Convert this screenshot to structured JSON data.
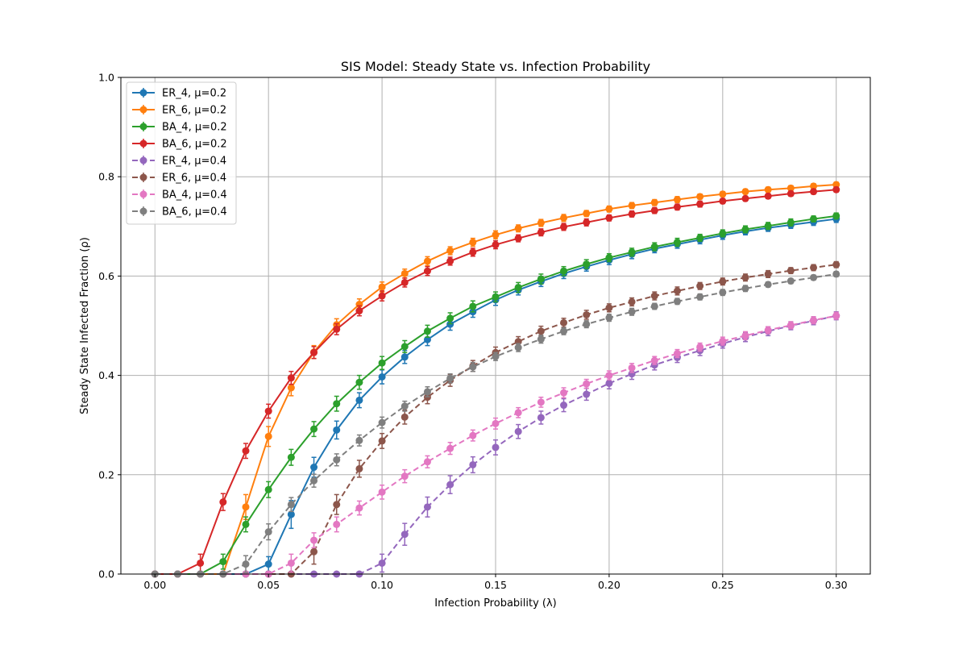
{
  "chart_data": {
    "type": "line",
    "title": "SIS Model: Steady State vs. Infection Probability",
    "xlabel": "Infection Probability (λ)",
    "ylabel": "Steady State Infected Fraction (ρ)",
    "xlim": [
      -0.015,
      0.315
    ],
    "ylim": [
      0,
      1
    ],
    "xticks": [
      0.0,
      0.05,
      0.1,
      0.15,
      0.2,
      0.25,
      0.3
    ],
    "xtick_labels": [
      "0.00",
      "0.05",
      "0.10",
      "0.15",
      "0.20",
      "0.25",
      "0.30"
    ],
    "yticks": [
      0.0,
      0.2,
      0.4,
      0.6,
      0.8,
      1.0
    ],
    "ytick_labels": [
      "0.0",
      "0.2",
      "0.4",
      "0.6",
      "0.8",
      "1.0"
    ],
    "grid": true,
    "legend_position": "top-left",
    "x": [
      0.0,
      0.01,
      0.02,
      0.03,
      0.04,
      0.05,
      0.06,
      0.07,
      0.08,
      0.09,
      0.1,
      0.11,
      0.12,
      0.13,
      0.14,
      0.15,
      0.16,
      0.17,
      0.18,
      0.19,
      0.2,
      0.21,
      0.22,
      0.23,
      0.24,
      0.25,
      0.26,
      0.27,
      0.28,
      0.29,
      0.3
    ],
    "series": [
      {
        "name": "ER_4, μ=0.2",
        "color": "#1f77b4",
        "dashed": false,
        "values": [
          0,
          0,
          0,
          0,
          0,
          0.02,
          0.12,
          0.215,
          0.29,
          0.35,
          0.397,
          0.437,
          0.472,
          0.503,
          0.528,
          0.552,
          0.572,
          0.589,
          0.605,
          0.619,
          0.632,
          0.644,
          0.655,
          0.664,
          0.673,
          0.682,
          0.69,
          0.697,
          0.703,
          0.709,
          0.715
        ],
        "errors": [
          0,
          0,
          0,
          0,
          0,
          0.015,
          0.028,
          0.02,
          0.018,
          0.015,
          0.014,
          0.013,
          0.012,
          0.012,
          0.011,
          0.011,
          0.01,
          0.01,
          0.01,
          0.009,
          0.009,
          0.009,
          0.008,
          0.008,
          0.008,
          0.008,
          0.007,
          0.007,
          0.007,
          0.007,
          0.007
        ]
      },
      {
        "name": "ER_6, μ=0.2",
        "color": "#ff7f0e",
        "dashed": false,
        "values": [
          0,
          0,
          0,
          0,
          0.135,
          0.277,
          0.375,
          0.447,
          0.502,
          0.543,
          0.578,
          0.605,
          0.63,
          0.651,
          0.668,
          0.683,
          0.696,
          0.707,
          0.717,
          0.726,
          0.735,
          0.742,
          0.748,
          0.754,
          0.76,
          0.765,
          0.77,
          0.774,
          0.777,
          0.781,
          0.784
        ],
        "errors": [
          0,
          0,
          0,
          0,
          0.025,
          0.02,
          0.016,
          0.013,
          0.012,
          0.011,
          0.01,
          0.009,
          0.009,
          0.008,
          0.008,
          0.008,
          0.007,
          0.007,
          0.007,
          0.006,
          0.006,
          0.006,
          0.006,
          0.006,
          0.005,
          0.005,
          0.005,
          0.005,
          0.005,
          0.005,
          0.005
        ]
      },
      {
        "name": "BA_4, μ=0.2",
        "color": "#2ca02c",
        "dashed": false,
        "values": [
          0,
          0,
          0,
          0.025,
          0.1,
          0.17,
          0.235,
          0.292,
          0.343,
          0.386,
          0.425,
          0.458,
          0.489,
          0.515,
          0.539,
          0.558,
          0.577,
          0.594,
          0.61,
          0.624,
          0.637,
          0.648,
          0.659,
          0.668,
          0.677,
          0.686,
          0.694,
          0.701,
          0.708,
          0.715,
          0.721
        ],
        "errors": [
          0,
          0,
          0,
          0.015,
          0.015,
          0.016,
          0.016,
          0.015,
          0.015,
          0.014,
          0.013,
          0.012,
          0.012,
          0.011,
          0.011,
          0.01,
          0.01,
          0.01,
          0.009,
          0.009,
          0.008,
          0.008,
          0.008,
          0.008,
          0.007,
          0.007,
          0.007,
          0.007,
          0.007,
          0.006,
          0.006
        ]
      },
      {
        "name": "BA_6, μ=0.2",
        "color": "#d62728",
        "dashed": false,
        "values": [
          0,
          0,
          0.022,
          0.145,
          0.248,
          0.328,
          0.395,
          0.446,
          0.493,
          0.53,
          0.56,
          0.587,
          0.61,
          0.63,
          0.648,
          0.663,
          0.676,
          0.688,
          0.699,
          0.708,
          0.717,
          0.725,
          0.732,
          0.739,
          0.745,
          0.751,
          0.756,
          0.761,
          0.766,
          0.77,
          0.774
        ],
        "errors": [
          0,
          0,
          0.018,
          0.017,
          0.015,
          0.014,
          0.013,
          0.012,
          0.011,
          0.01,
          0.01,
          0.009,
          0.009,
          0.008,
          0.008,
          0.008,
          0.007,
          0.007,
          0.007,
          0.007,
          0.006,
          0.006,
          0.006,
          0.006,
          0.006,
          0.005,
          0.005,
          0.005,
          0.005,
          0.005,
          0.005
        ]
      },
      {
        "name": "ER_4, μ=0.4",
        "color": "#9467bd",
        "dashed": true,
        "values": [
          0,
          0,
          0,
          0,
          0,
          0,
          0,
          0,
          0,
          0,
          0.022,
          0.08,
          0.135,
          0.18,
          0.22,
          0.255,
          0.287,
          0.315,
          0.34,
          0.362,
          0.384,
          0.403,
          0.421,
          0.436,
          0.45,
          0.464,
          0.477,
          0.489,
          0.5,
          0.51,
          0.52
        ],
        "errors": [
          0,
          0,
          0,
          0,
          0,
          0,
          0,
          0,
          0,
          0,
          0.018,
          0.022,
          0.02,
          0.018,
          0.016,
          0.015,
          0.014,
          0.013,
          0.013,
          0.012,
          0.011,
          0.011,
          0.01,
          0.01,
          0.01,
          0.009,
          0.009,
          0.009,
          0.008,
          0.008,
          0.008
        ]
      },
      {
        "name": "ER_6, μ=0.4",
        "color": "#8c564b",
        "dashed": true,
        "values": [
          0,
          0,
          0,
          0,
          0,
          0,
          0,
          0.045,
          0.14,
          0.212,
          0.268,
          0.316,
          0.356,
          0.39,
          0.419,
          0.446,
          0.468,
          0.489,
          0.506,
          0.522,
          0.536,
          0.548,
          0.56,
          0.57,
          0.58,
          0.589,
          0.597,
          0.604,
          0.611,
          0.617,
          0.623
        ],
        "errors": [
          0,
          0,
          0,
          0,
          0,
          0,
          0,
          0.025,
          0.02,
          0.017,
          0.015,
          0.014,
          0.013,
          0.012,
          0.011,
          0.011,
          0.01,
          0.01,
          0.009,
          0.009,
          0.008,
          0.008,
          0.008,
          0.008,
          0.007,
          0.007,
          0.007,
          0.007,
          0.006,
          0.006,
          0.006
        ]
      },
      {
        "name": "BA_4, μ=0.4",
        "color": "#e377c2",
        "dashed": true,
        "values": [
          0,
          0,
          0,
          0,
          0,
          0,
          0.022,
          0.068,
          0.1,
          0.133,
          0.165,
          0.197,
          0.226,
          0.253,
          0.279,
          0.303,
          0.325,
          0.346,
          0.365,
          0.383,
          0.4,
          0.415,
          0.43,
          0.444,
          0.457,
          0.469,
          0.48,
          0.491,
          0.501,
          0.511,
          0.52
        ],
        "errors": [
          0,
          0,
          0,
          0,
          0,
          0,
          0.018,
          0.015,
          0.015,
          0.014,
          0.014,
          0.013,
          0.012,
          0.012,
          0.011,
          0.011,
          0.01,
          0.01,
          0.01,
          0.009,
          0.009,
          0.009,
          0.008,
          0.008,
          0.008,
          0.008,
          0.008,
          0.007,
          0.007,
          0.007,
          0.007
        ]
      },
      {
        "name": "BA_6, μ=0.4",
        "color": "#7f7f7f",
        "dashed": true,
        "values": [
          0,
          0,
          0,
          0,
          0.02,
          0.085,
          0.14,
          0.188,
          0.23,
          0.269,
          0.305,
          0.338,
          0.367,
          0.394,
          0.417,
          0.438,
          0.456,
          0.473,
          0.489,
          0.503,
          0.516,
          0.528,
          0.539,
          0.549,
          0.558,
          0.567,
          0.575,
          0.583,
          0.59,
          0.597,
          0.604
        ],
        "errors": [
          0,
          0,
          0,
          0,
          0.017,
          0.016,
          0.014,
          0.013,
          0.012,
          0.011,
          0.011,
          0.01,
          0.01,
          0.009,
          0.009,
          0.008,
          0.008,
          0.008,
          0.007,
          0.007,
          0.007,
          0.007,
          0.006,
          0.006,
          0.006,
          0.006,
          0.006,
          0.005,
          0.005,
          0.005,
          0.005
        ]
      }
    ]
  }
}
